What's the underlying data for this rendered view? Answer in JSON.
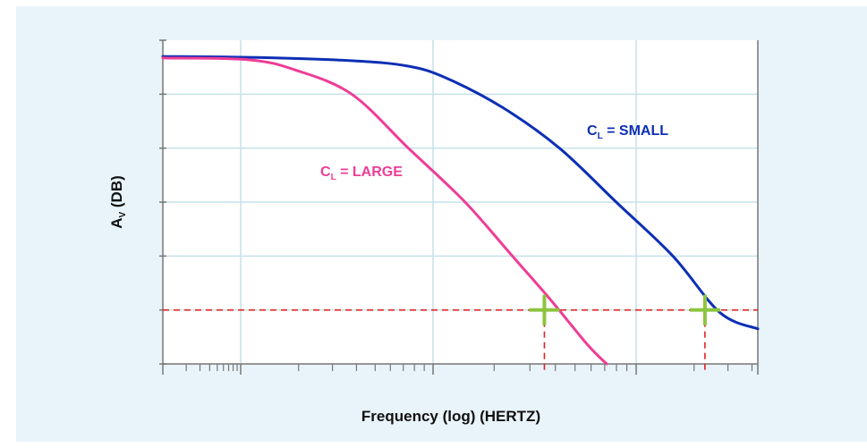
{
  "colors": {
    "background": "#e8f4fa",
    "plot_area": "#ffffff",
    "grid": "#c5e1ea",
    "axis": "#777777",
    "large_curve": "#ee3d96",
    "small_curve": "#0d2fb5",
    "threshold": "#dd2222",
    "marker": "#8bc53f"
  },
  "chart_data": {
    "type": "line",
    "title": "",
    "xlabel": "Frequency (log) (HERTZ)",
    "ylabel": {
      "main": "A",
      "sub": "V",
      "rest": " (DB)"
    },
    "x_scale": "log",
    "grid": true,
    "x_ticks_visible": false,
    "y_ticks_visible": false,
    "reference_level_note": "dashed red line marks a common gain level; crosses mark where each curve meets it",
    "series": [
      {
        "label": {
          "main": "C",
          "sub": "L",
          "rest": " = SMALL"
        },
        "color_key": "small_curve",
        "points": [
          [
            0.0,
            5.7
          ],
          [
            0.5,
            5.68
          ],
          [
            1.0,
            5.62
          ],
          [
            1.3,
            5.52
          ],
          [
            1.5,
            5.3
          ],
          [
            1.8,
            4.75
          ],
          [
            2.1,
            4.0
          ],
          [
            2.4,
            3.0
          ],
          [
            2.7,
            2.0
          ],
          [
            2.95,
            0.95
          ],
          [
            3.15,
            0.65
          ]
        ]
      },
      {
        "label": {
          "main": "C",
          "sub": "L",
          "rest": " = LARGE"
        },
        "color_key": "large_curve",
        "points": [
          [
            0.0,
            5.67
          ],
          [
            0.45,
            5.64
          ],
          [
            0.7,
            5.45
          ],
          [
            1.0,
            5.0
          ],
          [
            1.3,
            4.0
          ],
          [
            1.6,
            3.0
          ],
          [
            1.85,
            2.0
          ],
          [
            2.05,
            1.2
          ],
          [
            2.25,
            0.35
          ],
          [
            2.35,
            0.0
          ]
        ]
      }
    ],
    "reference_level": 1.0,
    "markers": [
      [
        2.02,
        1.0
      ],
      [
        2.87,
        1.0
      ]
    ]
  }
}
